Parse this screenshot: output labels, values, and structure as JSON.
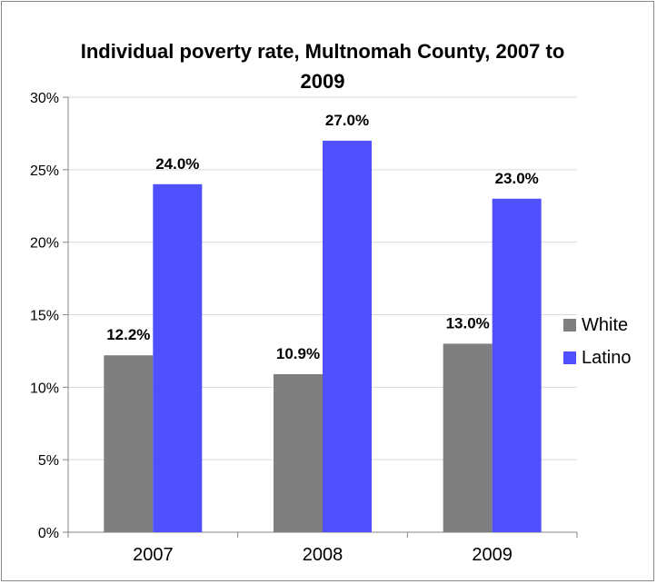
{
  "chart_data": {
    "type": "bar",
    "title": "Individual poverty rate, Multnomah County, 2007 to 2009",
    "categories": [
      "2007",
      "2008",
      "2009"
    ],
    "series": [
      {
        "name": "White",
        "values": [
          12.2,
          10.9,
          13.0
        ],
        "labels": [
          "12.2%",
          "10.9%",
          "13.0%"
        ],
        "color": "#7f7f7f"
      },
      {
        "name": "Latino",
        "values": [
          24.0,
          27.0,
          23.0
        ],
        "labels": [
          "24.0%",
          "27.0%",
          "23.0%"
        ],
        "color": "#5050ff"
      }
    ],
    "ylim": [
      0,
      30
    ],
    "yticks": [
      "0%",
      "5%",
      "10%",
      "15%",
      "20%",
      "25%",
      "30%"
    ],
    "grid": true,
    "legend": "right"
  }
}
